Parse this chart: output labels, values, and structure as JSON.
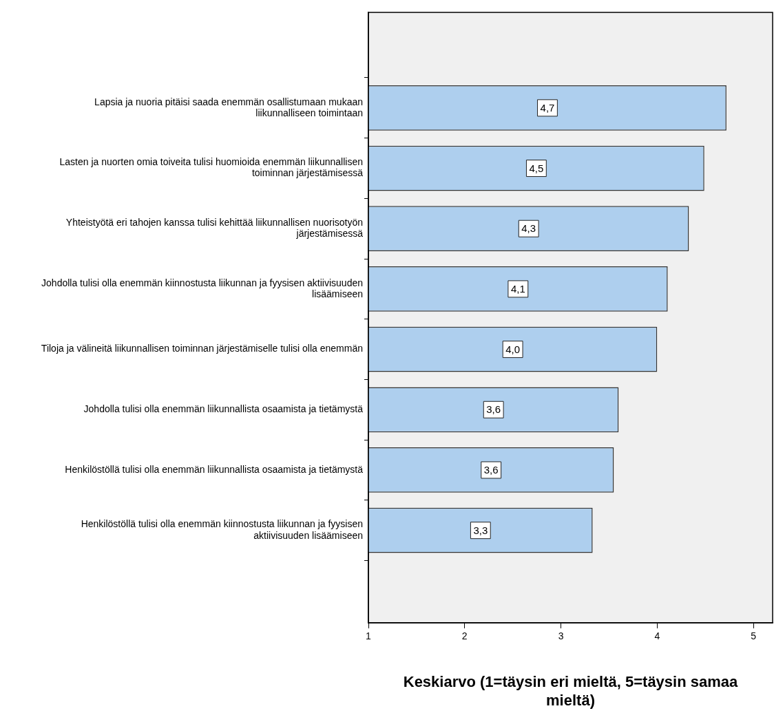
{
  "chart_data": {
    "type": "bar",
    "orientation": "horizontal",
    "xlabel": "Keskiarvo (1=täysin eri mieltä, 5=täysin samaa mieltä)",
    "categories": [
      "Lapsia ja nuoria pitäisi saada enemmän osallistumaan mukaan liikunnalliseen toimintaan",
      "Lasten ja nuorten omia toiveita tulisi huomioida enemmän liikunnallisen toiminnan järjestämisessä",
      "Yhteistyötä eri tahojen kanssa tulisi kehittää liikunnallisen nuorisotyön järjestämisessä",
      "Johdolla tulisi olla enemmän kiinnostusta liikunnan ja fyysisen aktiivisuuden lisäämiseen",
      "Tiloja ja välineitä liikunnallisen toiminnan järjestämiselle tulisi olla enemmän",
      "Johdolla tulisi olla enemmän liikunnallista osaamista ja tietämystä",
      "Henkilöstöllä tulisi olla enemmän liikunnallista osaamista ja tietämystä",
      "Henkilöstöllä tulisi olla enemmän kiinnostusta liikunnan ja fyysisen aktiivisuuden lisäämiseen"
    ],
    "values": [
      4.72,
      4.49,
      4.33,
      4.11,
      4.0,
      3.6,
      3.55,
      3.33
    ],
    "value_labels": [
      "4,7",
      "4,5",
      "4,3",
      "4,1",
      "4,0",
      "3,6",
      "3,6",
      "3,3"
    ],
    "color": "#aecfee",
    "xlim": [
      1,
      5.2
    ],
    "xticks": [
      1,
      2,
      3,
      4,
      5
    ],
    "grid": false,
    "legend": false
  }
}
